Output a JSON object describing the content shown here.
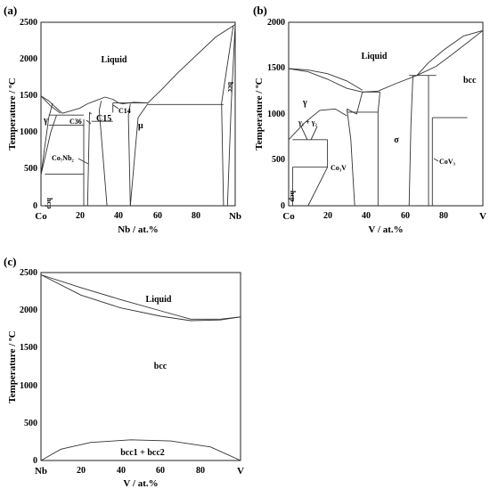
{
  "chart_data": [
    {
      "type": "line",
      "panel": "(a)",
      "xlabel": "Nb / at.%",
      "ylabel": "Temperature / ºC",
      "xlim": [
        0,
        100
      ],
      "ylim": [
        0,
        2500
      ],
      "x_ticks": [
        "20",
        "40",
        "60",
        "80"
      ],
      "x_end_labels": [
        "Co",
        "Nb"
      ],
      "y_ticks": [
        "0",
        "500",
        "1000",
        "1500",
        "2000",
        "2500"
      ],
      "phase_labels": [
        "Liquid",
        "γ",
        "C36",
        "C15",
        "C14",
        "μ",
        "Co₇Nb₂",
        "hcp",
        "bcc"
      ],
      "series": [
        {
          "values": [
            [
              0,
              1495
            ],
            [
              4,
              1430
            ],
            [
              8,
              1330
            ],
            [
              11,
              1260
            ]
          ]
        },
        {
          "values": [
            [
              11,
              1260
            ],
            [
              15,
              1290
            ],
            [
              20,
              1330
            ],
            [
              24,
              1390
            ],
            [
              28,
              1430
            ],
            [
              33,
              1480
            ]
          ]
        },
        {
          "values": [
            [
              33,
              1480
            ],
            [
              37,
              1450
            ],
            [
              40,
              1400
            ],
            [
              42,
              1390
            ]
          ]
        },
        {
          "values": [
            [
              42,
              1390
            ],
            [
              48,
              1410
            ],
            [
              55,
              1400
            ]
          ]
        },
        {
          "values": [
            [
              55,
              1400
            ],
            [
              62,
              1580
            ],
            [
              70,
              1800
            ],
            [
              80,
              2050
            ],
            [
              90,
              2300
            ],
            [
              100,
              2470
            ]
          ]
        },
        {
          "values": [
            [
              0,
              1495
            ],
            [
              5,
              1360
            ],
            [
              10,
              1260
            ]
          ]
        },
        {
          "values": [
            [
              0,
              420
            ],
            [
              5,
              1000
            ],
            [
              8,
              1230
            ]
          ]
        },
        {
          "values": [
            [
              0,
              420
            ],
            [
              4,
              1200
            ],
            [
              6,
              1400
            ]
          ]
        },
        {
          "values": [
            [
              22,
              0
            ],
            [
              22,
              1180
            ]
          ]
        },
        {
          "values": [
            [
              24,
              0
            ],
            [
              25,
              1270
            ],
            [
              26,
              1250
            ]
          ]
        },
        {
          "values": [
            [
              34,
              0
            ],
            [
              30,
              1300
            ],
            [
              31,
              1430
            ]
          ]
        },
        {
          "values": [
            [
              37,
              1270
            ],
            [
              37,
              1400
            ]
          ]
        },
        {
          "values": [
            [
              46,
              0
            ],
            [
              45,
              1230
            ],
            [
              46,
              1390
            ]
          ]
        },
        {
          "values": [
            [
              46,
              0
            ],
            [
              50,
              1200
            ],
            [
              55,
              1390
            ]
          ]
        },
        {
          "values": [
            [
              94,
              0
            ],
            [
              93,
              1400
            ],
            [
              99,
              2450
            ]
          ]
        },
        {
          "values": [
            [
              96,
              0
            ],
            [
              98,
              1400
            ],
            [
              100,
              2470
            ]
          ]
        }
      ],
      "horizontal_lines": [
        {
          "y": 1235,
          "x": [
            4,
            22
          ]
        },
        {
          "y": 1100,
          "x": [
            4,
            22
          ]
        },
        {
          "y": 430,
          "x": [
            2,
            22
          ]
        },
        {
          "y": 1400,
          "x": [
            37,
            55
          ]
        },
        {
          "y": 1380,
          "x": [
            55,
            94
          ]
        },
        {
          "y": 1150,
          "x": [
            26,
            37
          ]
        }
      ]
    },
    {
      "type": "line",
      "panel": "(b)",
      "xlabel": "V / at.%",
      "ylabel": "Temperature / ºC",
      "xlim": [
        0,
        100
      ],
      "ylim": [
        0,
        2000
      ],
      "x_ticks": [
        "20",
        "40",
        "60",
        "80"
      ],
      "x_end_labels": [
        "Co",
        "V"
      ],
      "y_ticks": [
        "0",
        "500",
        "1000",
        "1500",
        "2000"
      ],
      "phase_labels": [
        "Liquid",
        "γ",
        "γ₁ + γ₂",
        "σ",
        "Co₃V",
        "CoV₃",
        "hcp",
        "bcc"
      ],
      "series": [
        {
          "values": [
            [
              0,
              1495
            ],
            [
              10,
              1480
            ],
            [
              20,
              1440
            ],
            [
              30,
              1360
            ],
            [
              38,
              1260
            ]
          ]
        },
        {
          "values": [
            [
              0,
              1495
            ],
            [
              10,
              1460
            ],
            [
              20,
              1380
            ],
            [
              30,
              1280
            ],
            [
              38,
              1240
            ]
          ]
        },
        {
          "values": [
            [
              38,
              1240
            ],
            [
              46,
              1250
            ],
            [
              55,
              1330
            ],
            [
              66,
              1420
            ]
          ]
        },
        {
          "values": [
            [
              66,
              1420
            ],
            [
              72,
              1560
            ],
            [
              80,
              1700
            ],
            [
              90,
              1850
            ],
            [
              100,
              1910
            ]
          ]
        },
        {
          "values": [
            [
              66,
              1420
            ],
            [
              76,
              1520
            ],
            [
              86,
              1680
            ],
            [
              100,
              1910
            ]
          ]
        },
        {
          "values": [
            [
              0,
              720
            ],
            [
              8,
              900
            ],
            [
              16,
              1040
            ],
            [
              24,
              1055
            ],
            [
              30,
              980
            ]
          ]
        },
        {
          "values": [
            [
              30,
              1055
            ],
            [
              35,
              1000
            ],
            [
              38,
              1240
            ]
          ]
        },
        {
          "values": [
            [
              2,
              0
            ],
            [
              2,
              420
            ]
          ]
        },
        {
          "values": [
            [
              10,
              0
            ],
            [
              20,
              420
            ],
            [
              20,
              720
            ]
          ]
        },
        {
          "values": [
            [
              34,
              0
            ],
            [
              32,
              720
            ],
            [
              30,
              1055
            ]
          ]
        },
        {
          "values": [
            [
              46,
              0
            ],
            [
              46,
              1020
            ],
            [
              47,
              1240
            ]
          ]
        },
        {
          "values": [
            [
              62,
              0
            ],
            [
              63,
              900
            ],
            [
              64,
              1420
            ]
          ]
        },
        {
          "values": [
            [
              72,
              0
            ],
            [
              72,
              960
            ],
            [
              72,
              1420
            ]
          ]
        },
        {
          "values": [
            [
              74,
              0
            ],
            [
              74,
              960
            ]
          ]
        }
      ],
      "horizontal_lines": [
        {
          "y": 720,
          "x": [
            2,
            20
          ]
        },
        {
          "y": 420,
          "x": [
            2,
            20
          ]
        },
        {
          "y": 1020,
          "x": [
            30,
            46
          ]
        },
        {
          "y": 1240,
          "x": [
            38,
            47
          ]
        },
        {
          "y": 960,
          "x": [
            74,
            92
          ]
        },
        {
          "y": 1420,
          "x": [
            62,
            76
          ]
        }
      ]
    },
    {
      "type": "line",
      "panel": "(c)",
      "xlabel": "V / at.%",
      "ylabel": "Temperature / ºC",
      "xlim": [
        0,
        100
      ],
      "ylim": [
        0,
        2500
      ],
      "x_ticks": [
        "20",
        "40",
        "60",
        "80"
      ],
      "x_end_labels": [
        "Nb",
        "V"
      ],
      "y_ticks": [
        "0",
        "500",
        "1000",
        "1500",
        "2000",
        "2500"
      ],
      "phase_labels": [
        "Liquid",
        "bcc",
        "bcc1 + bcc2"
      ],
      "series": [
        {
          "values": [
            [
              0,
              2470
            ],
            [
              20,
              2300
            ],
            [
              40,
              2140
            ],
            [
              60,
              1990
            ],
            [
              75,
              1880
            ],
            [
              90,
              1880
            ],
            [
              100,
              1910
            ]
          ]
        },
        {
          "values": [
            [
              0,
              2470
            ],
            [
              20,
              2200
            ],
            [
              40,
              2030
            ],
            [
              60,
              1920
            ],
            [
              75,
              1860
            ],
            [
              90,
              1870
            ],
            [
              100,
              1910
            ]
          ]
        },
        {
          "values": [
            [
              0,
              0
            ],
            [
              10,
              150
            ],
            [
              25,
              240
            ],
            [
              45,
              275
            ],
            [
              65,
              260
            ],
            [
              85,
              180
            ],
            [
              100,
              0
            ]
          ]
        }
      ]
    }
  ]
}
